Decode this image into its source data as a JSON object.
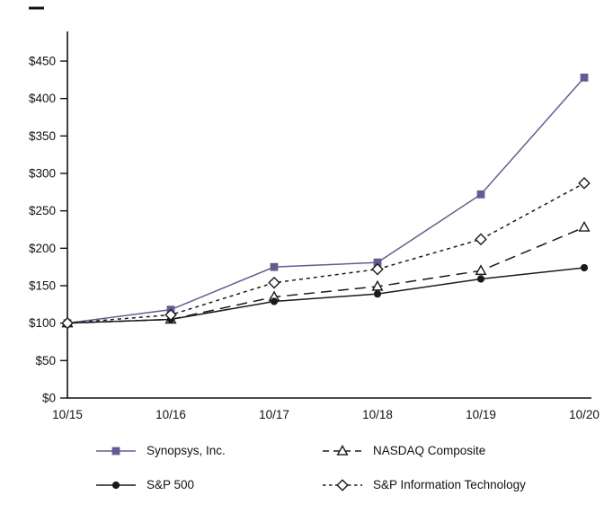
{
  "chart_data": {
    "type": "line",
    "title": "",
    "xlabel": "",
    "ylabel": "",
    "categories": [
      "10/15",
      "10/16",
      "10/17",
      "10/18",
      "10/19",
      "10/20"
    ],
    "y_ticks": [
      "$0",
      "$50",
      "$100",
      "$150",
      "$200",
      "$250",
      "$300",
      "$350",
      "$400",
      "$450"
    ],
    "y_tick_values": [
      0,
      50,
      100,
      150,
      200,
      250,
      300,
      350,
      400,
      450
    ],
    "ylim": [
      0,
      480
    ],
    "grid": false,
    "legend_position": "bottom",
    "series": [
      {
        "name": "Synopsys, Inc.",
        "values": [
          100,
          118,
          175,
          181,
          272,
          428
        ],
        "color": "#625D90",
        "line": "solid",
        "marker": "square",
        "marker_fill": "filled"
      },
      {
        "name": "NASDAQ Composite",
        "values": [
          100,
          105,
          135,
          149,
          170,
          228
        ],
        "color": "#1a1a1a",
        "line": "dash",
        "marker": "triangle",
        "marker_fill": "open"
      },
      {
        "name": "S&P 500",
        "values": [
          100,
          105,
          129,
          139,
          159,
          174
        ],
        "color": "#1a1a1a",
        "line": "solid",
        "marker": "circle",
        "marker_fill": "filled"
      },
      {
        "name": "S&P Information Technology",
        "values": [
          100,
          111,
          154,
          172,
          212,
          287
        ],
        "color": "#1a1a1a",
        "line": "shortdash",
        "marker": "diamond",
        "marker_fill": "open"
      }
    ]
  }
}
